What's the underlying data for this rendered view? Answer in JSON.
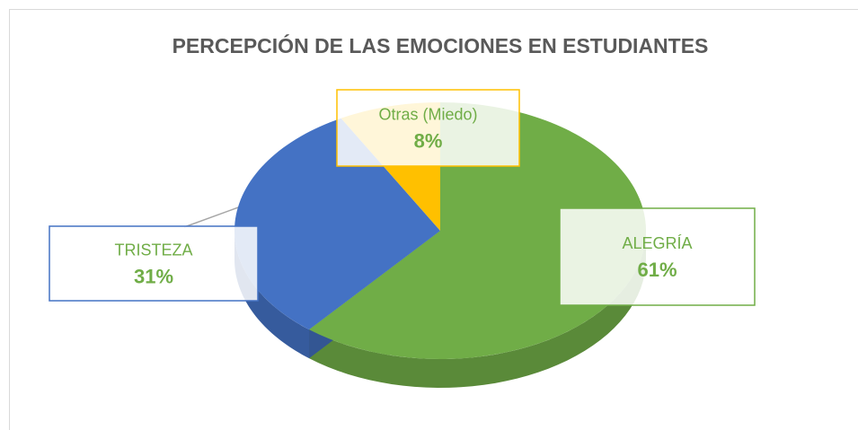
{
  "chart_data": {
    "type": "pie",
    "title": "PERCEPCIÓN DE LAS EMOCIONES EN ESTUDIANTES",
    "categories": [
      "ALEGRÍA",
      "TRISTEZA",
      "Otras (Miedo)"
    ],
    "values": [
      61,
      31,
      8
    ],
    "value_labels": [
      "61%",
      "31%",
      "8%"
    ],
    "colors": [
      "#70ad47",
      "#4472c4",
      "#ffc000"
    ]
  }
}
